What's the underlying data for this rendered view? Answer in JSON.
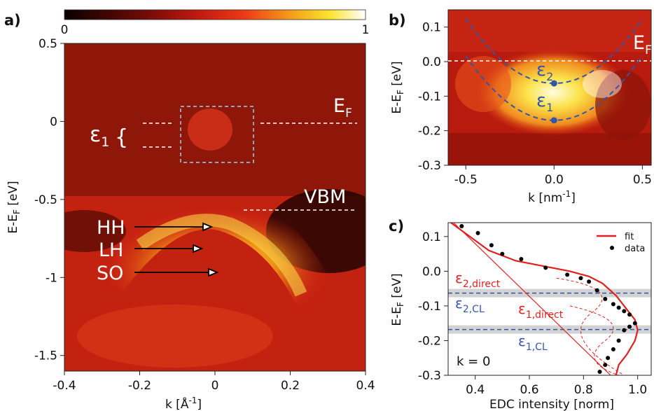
{
  "panels": {
    "a": {
      "letter": "a)",
      "colorbar": {
        "min_label": "0",
        "max_label": "1"
      },
      "xlabel_main": "k [Å",
      "xlabel_sup": "-1",
      "xlabel_tail": "]",
      "ylabel": "E-E",
      "ylabel_sub": "F",
      "ylabel_tail": " [eV]",
      "annotations": {
        "eps1": "ε",
        "eps1_sub": "1",
        "brace": "{",
        "EF": "E",
        "EF_sub": "F",
        "VBM": "VBM",
        "HH": "HH",
        "LH": "LH",
        "SO": "SO"
      }
    },
    "b": {
      "letter": "b)",
      "xlabel": "k [nm",
      "xlabel_sup": "-1",
      "xlabel_tail": "]",
      "ylabel": "E-E",
      "ylabel_sub": "F",
      "ylabel_tail": " [eV]",
      "annotations": {
        "EF": "E",
        "EF_sub": "F",
        "eps2": "ε",
        "eps2_sub": "2",
        "eps1": "ε",
        "eps1_sub": "1"
      }
    },
    "c": {
      "letter": "c)",
      "xlabel": "EDC intensity [norm]",
      "ylabel": "E-E",
      "ylabel_sub": "F",
      "ylabel_tail": " [eV]",
      "annotations": {
        "e2d": "ε",
        "e2d_sub": "2,direct",
        "e2cl": "ε",
        "e2cl_sub": "2,CL",
        "e1d": "ε",
        "e1d_sub": "1,direct",
        "e1cl": "ε",
        "e1cl_sub": "1,CL",
        "k0": "k = 0"
      },
      "legend": {
        "fit": "fit",
        "data": "data"
      }
    }
  },
  "colors": {
    "fit": "#e02020",
    "blue": "#3355aa",
    "grey_band": "#c8c8c8"
  },
  "chart_data": [
    {
      "type": "heatmap",
      "panel": "a",
      "xlim": [
        -0.4,
        0.4
      ],
      "ylim": [
        -1.6,
        0.5
      ],
      "xticks": [
        "-0.4",
        "-0.2",
        "0",
        "0.2",
        "0.4"
      ],
      "yticks": [
        "0.5",
        "0",
        "-0.5",
        "-1",
        "-1.5"
      ],
      "colorbar_range": [
        0,
        1
      ]
    },
    {
      "type": "heatmap",
      "panel": "b",
      "xlim": [
        -0.6,
        0.55
      ],
      "ylim": [
        -0.3,
        0.15
      ],
      "xticks": [
        "-0.5",
        "0.0",
        "0.5"
      ],
      "yticks": [
        "0.1",
        "0.0",
        "-0.1",
        "-0.2",
        "-0.3"
      ],
      "points": [
        {
          "x": 0.0,
          "y": -0.063
        },
        {
          "x": 0.0,
          "y": -0.17
        }
      ]
    },
    {
      "type": "scatter",
      "panel": "c",
      "xlim": [
        0.3,
        1.05
      ],
      "ylim": [
        -0.3,
        0.14
      ],
      "xticks": [
        "0.4",
        "0.6",
        "0.8",
        "1.0"
      ],
      "yticks": [
        "0.1",
        "0.0",
        "-0.1",
        "-0.2",
        "-0.3"
      ],
      "series": [
        {
          "name": "data",
          "x": [
            0.35,
            0.41,
            0.46,
            0.5,
            0.57,
            0.66,
            0.74,
            0.79,
            0.82,
            0.85,
            0.88,
            0.91,
            0.93,
            0.95,
            0.97,
            0.99,
            0.97,
            0.95,
            0.93,
            0.91,
            0.89,
            0.88,
            0.86
          ],
          "y": [
            0.13,
            0.11,
            0.075,
            0.05,
            0.035,
            0.01,
            -0.01,
            -0.02,
            -0.03,
            -0.055,
            -0.08,
            -0.095,
            -0.105,
            -0.115,
            -0.125,
            -0.15,
            -0.16,
            -0.17,
            -0.2,
            -0.225,
            -0.25,
            -0.27,
            -0.29
          ]
        },
        {
          "name": "fit",
          "x": [
            0.31,
            0.38,
            0.45,
            0.55,
            0.65,
            0.75,
            0.82,
            0.87,
            0.92,
            0.96,
            0.99,
            1.0,
            0.99,
            0.96,
            0.93,
            0.92
          ],
          "y": [
            0.14,
            0.1,
            0.06,
            0.03,
            0.015,
            0.0,
            -0.015,
            -0.035,
            -0.07,
            -0.11,
            -0.14,
            -0.17,
            -0.2,
            -0.24,
            -0.27,
            -0.3
          ]
        }
      ],
      "levels": [
        {
          "name": "ε2",
          "y": -0.063
        },
        {
          "name": "ε1",
          "y": -0.168
        }
      ]
    }
  ]
}
